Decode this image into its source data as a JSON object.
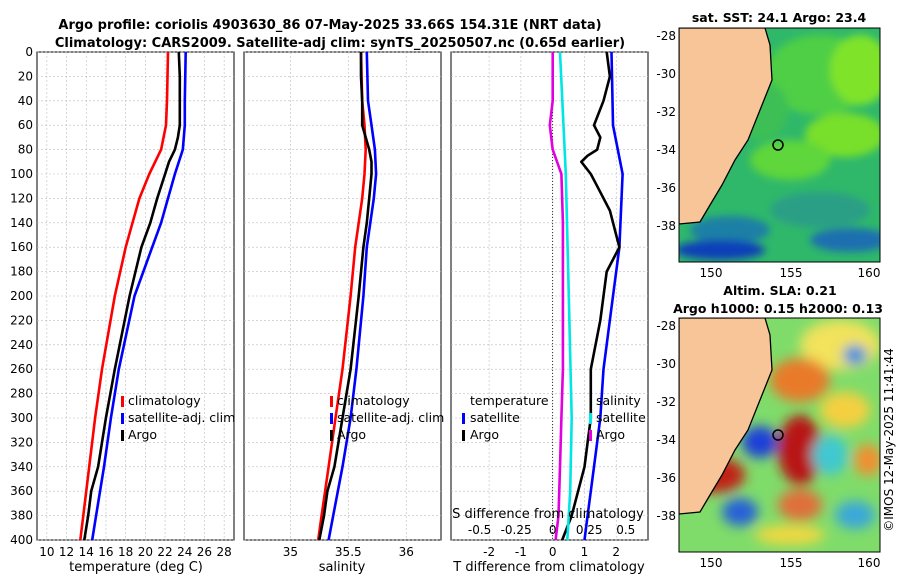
{
  "title": {
    "line1": "Argo profile: coriolis 4903630_86 07-May-2025 33.66S 154.31E (NRT data)",
    "line2": "Climatology: CARS2009. Satellite-adj clim: synTS_20250507.nc (0.65d earlier)"
  },
  "depth_ticks": [
    "0",
    "20",
    "40",
    "60",
    "80",
    "100",
    "120",
    "140",
    "160",
    "180",
    "200",
    "220",
    "240",
    "260",
    "280",
    "300",
    "320",
    "340",
    "360",
    "380",
    "400"
  ],
  "colors": {
    "clim": "#ff0000",
    "sat": "#0000ff",
    "argo": "#000000",
    "temp_diff": "#00e5e5",
    "sal_diff": "#e000e0",
    "land": "#f7c597",
    "coast": "#000000"
  },
  "chart_data": [
    {
      "type": "line",
      "name": "temperature profile",
      "xlabel": "temperature (deg C)",
      "xlim": [
        9,
        29
      ],
      "xticks": [
        "10",
        "12",
        "14",
        "16",
        "18",
        "20",
        "22",
        "24",
        "26",
        "28"
      ],
      "ylim": [
        0,
        400
      ],
      "legend": {
        "position": "lower-right",
        "entries": [
          "climatology",
          "satellite-adj. clim",
          "Argo"
        ]
      },
      "series": [
        {
          "name": "climatology",
          "depth": [
            0,
            40,
            60,
            80,
            100,
            120,
            140,
            160,
            200,
            260,
            300,
            340,
            380,
            400
          ],
          "values": [
            22.3,
            22.2,
            22.1,
            21.6,
            20.4,
            19.4,
            18.7,
            18.0,
            16.9,
            15.6,
            14.9,
            14.3,
            13.7,
            13.4
          ]
        },
        {
          "name": "satellite-adj. clim",
          "depth": [
            0,
            40,
            60,
            80,
            100,
            120,
            140,
            160,
            200,
            260,
            300,
            340,
            380,
            400
          ],
          "values": [
            24.1,
            24.0,
            24.0,
            23.8,
            23.0,
            22.3,
            21.6,
            20.7,
            18.9,
            17.3,
            16.5,
            15.8,
            15.0,
            14.6
          ]
        },
        {
          "name": "Argo",
          "depth": [
            0,
            20,
            40,
            60,
            70,
            80,
            90,
            100,
            120,
            140,
            160,
            200,
            260,
            300,
            340,
            360,
            380,
            400
          ],
          "values": [
            23.4,
            23.5,
            23.5,
            23.5,
            23.3,
            23.0,
            22.4,
            22.0,
            21.2,
            20.5,
            19.6,
            18.4,
            16.9,
            16.0,
            15.2,
            14.5,
            14.2,
            13.8
          ]
        }
      ]
    },
    {
      "type": "line",
      "name": "salinity profile",
      "xlabel": "salinity",
      "xlim": [
        34.6,
        36.3
      ],
      "xticks": [
        "35",
        "35.5",
        "36"
      ],
      "ylim": [
        0,
        400
      ],
      "legend": {
        "position": "lower-right",
        "entries": [
          "climatology",
          "satellite-adj. clim",
          "Argo"
        ]
      },
      "series": [
        {
          "name": "climatology",
          "depth": [
            0,
            40,
            60,
            80,
            100,
            120,
            140,
            160,
            200,
            260,
            300,
            340,
            380,
            400
          ],
          "values": [
            35.61,
            35.62,
            35.64,
            35.65,
            35.64,
            35.62,
            35.59,
            35.56,
            35.52,
            35.45,
            35.39,
            35.33,
            35.27,
            35.24
          ]
        },
        {
          "name": "satellite-adj. clim",
          "depth": [
            0,
            40,
            60,
            80,
            100,
            120,
            140,
            160,
            200,
            260,
            300,
            340,
            380,
            400
          ],
          "values": [
            35.66,
            35.67,
            35.7,
            35.73,
            35.74,
            35.72,
            35.69,
            35.66,
            35.63,
            35.57,
            35.52,
            35.45,
            35.37,
            35.33
          ]
        },
        {
          "name": "Argo",
          "depth": [
            0,
            20,
            40,
            60,
            70,
            80,
            90,
            100,
            120,
            140,
            160,
            200,
            260,
            300,
            340,
            360,
            380,
            400
          ],
          "values": [
            35.61,
            35.61,
            35.62,
            35.62,
            35.65,
            35.68,
            35.7,
            35.7,
            35.68,
            35.66,
            35.63,
            35.59,
            35.52,
            35.45,
            35.38,
            35.32,
            35.29,
            35.25
          ]
        }
      ]
    },
    {
      "type": "line",
      "name": "difference from climatology",
      "xlabel": "T difference from climatology",
      "xlabel_top": "S difference from climatology",
      "xlim": [
        -3.2,
        3.0
      ],
      "xticks": [
        "-2",
        "-1",
        "0",
        "1",
        "2"
      ],
      "xticks_top": [
        "-0.5",
        "-0.25",
        "0",
        "0.25",
        "0.5"
      ],
      "ylim": [
        0,
        400
      ],
      "legend": {
        "position": "lower-center",
        "headings": [
          "temperature",
          "salinity"
        ],
        "entries": [
          "satellite",
          "Argo"
        ]
      },
      "series": [
        {
          "name": "temperature satellite",
          "depth": [
            0,
            60,
            100,
            160,
            200,
            260,
            300,
            340,
            380,
            400
          ],
          "values": [
            1.85,
            1.9,
            2.2,
            2.1,
            1.9,
            1.6,
            1.5,
            1.3,
            1.1,
            1.0
          ]
        },
        {
          "name": "temperature Argo",
          "depth": [
            0,
            20,
            40,
            60,
            70,
            80,
            85,
            90,
            100,
            110,
            130,
            150,
            160,
            180,
            220,
            260,
            300,
            320,
            340,
            360,
            380,
            400
          ],
          "values": [
            1.7,
            1.8,
            1.6,
            1.3,
            1.5,
            1.4,
            1.1,
            0.9,
            1.2,
            1.4,
            1.8,
            2.0,
            2.1,
            1.7,
            1.5,
            1.2,
            1.2,
            1.1,
            1.0,
            0.8,
            0.6,
            0.3
          ]
        },
        {
          "name": "salinity satellite",
          "depth": [
            0,
            100,
            200,
            300,
            360,
            400
          ],
          "values": [
            0.05,
            0.09,
            0.11,
            0.13,
            0.12,
            0.1
          ]
        },
        {
          "name": "salinity Argo",
          "depth": [
            0,
            40,
            60,
            80,
            100,
            140,
            200,
            260,
            300,
            340,
            380,
            400
          ],
          "values": [
            0.0,
            0.0,
            -0.02,
            0.0,
            0.06,
            0.07,
            0.07,
            0.07,
            0.06,
            0.05,
            0.04,
            0.02
          ]
        }
      ]
    }
  ],
  "maps": [
    {
      "title": "sat. SST: 24.1 Argo: 23.4",
      "xticks": [
        "150",
        "155",
        "160"
      ],
      "yticks": [
        "-28",
        "-30",
        "-32",
        "-34",
        "-36",
        "-38"
      ],
      "xlim": [
        148,
        160.5
      ],
      "ylim": [
        -39.5,
        -27.8
      ],
      "marker": {
        "lon": 154.31,
        "lat": -33.66
      }
    },
    {
      "title": "Altim. SLA: 0.21",
      "subtitle": "Argo h1000: 0.15 h2000: 0.13",
      "xticks": [
        "150",
        "155",
        "160"
      ],
      "yticks": [
        "-28",
        "-30",
        "-32",
        "-34",
        "-36",
        "-38"
      ],
      "xlim": [
        148,
        160.5
      ],
      "ylim": [
        -39.5,
        -27.8
      ],
      "marker": {
        "lon": 154.31,
        "lat": -33.66
      }
    }
  ],
  "credit": "©IMOS 12-May-2025 11:41:44"
}
